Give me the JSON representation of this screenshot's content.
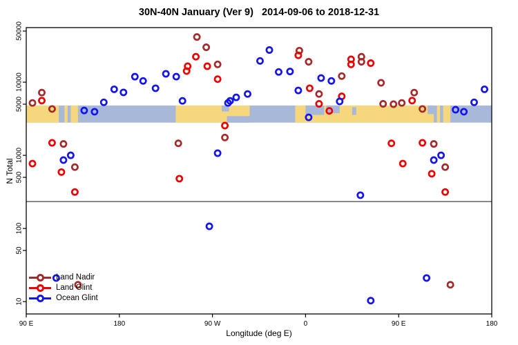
{
  "chart_data": {
    "type": "scatter",
    "title": "30N-40N January (Ver 9)   2014-09-06 to 2018-12-31",
    "xlabel": "Longitude (deg E)",
    "ylabel": "N Total",
    "x_axis_note": "longitude axis runs eastward from 90E and wraps past 180 through 90W, 0, 90E to 180 (450 degrees total)",
    "x_axis_deg_range": [
      90,
      540
    ],
    "y_scale": "log10",
    "ylim": [
      8,
      55000
    ],
    "y_ticks": [
      10,
      50,
      100,
      500,
      1000,
      5000,
      10000,
      50000
    ],
    "x_ticks": [
      {
        "deg": 90,
        "label": "90 E"
      },
      {
        "deg": 180,
        "label": "180"
      },
      {
        "deg": 270,
        "label": "90 W"
      },
      {
        "deg": 360,
        "label": "0"
      },
      {
        "deg": 450,
        "label": "90 E"
      },
      {
        "deg": 540,
        "label": "180"
      }
    ],
    "reference_line_n": 233,
    "grid": false,
    "legend_position": "bottom-left",
    "map_band": {
      "comment": "horizontal world-map strip of the 30N-40N latitude belt drawn across the plot",
      "n_top": 4800,
      "n_bottom": 2800,
      "ocean_color": "#a8b8d8",
      "land_color": "#f6d77e",
      "land_segments_deg": [
        [
          90,
          121.5
        ],
        [
          127,
          130
        ],
        [
          133,
          140
        ],
        [
          234.5,
          306
        ],
        [
          350,
          484
        ],
        [
          487,
          490
        ],
        [
          493,
          500
        ]
      ],
      "water_patches_deg": [
        {
          "from": 279,
          "to": 286,
          "top": 0.0,
          "bottom": 0.35
        },
        {
          "from": 284,
          "to": 306,
          "top": 0.62,
          "bottom": 1.0
        },
        {
          "from": 360,
          "to": 378,
          "top": 0.0,
          "bottom": 0.55
        },
        {
          "from": 380,
          "to": 393,
          "top": 0.0,
          "bottom": 0.45
        },
        {
          "from": 405,
          "to": 409,
          "top": 0.1,
          "bottom": 0.55
        },
        {
          "from": 478,
          "to": 484,
          "top": 0.0,
          "bottom": 0.5
        }
      ]
    },
    "series": [
      {
        "name": "Land Nadir",
        "color": "#a52a2a",
        "marker": "open-circle",
        "points": [
          [
            96,
            5200
          ],
          [
            105,
            7200
          ],
          [
            115,
            4300
          ],
          [
            126,
            1430
          ],
          [
            137,
            690
          ],
          [
            140,
            17
          ],
          [
            237,
            1460
          ],
          [
            255,
            41500
          ],
          [
            264,
            30000
          ],
          [
            275,
            17500
          ],
          [
            282,
            1750
          ],
          [
            354,
            27000
          ],
          [
            363,
            19000
          ],
          [
            373,
            6900
          ],
          [
            395,
            12100
          ],
          [
            414,
            22300
          ],
          [
            414,
            19000
          ],
          [
            433,
            9800
          ],
          [
            435,
            5050
          ],
          [
            445,
            5000
          ],
          [
            453,
            5200
          ],
          [
            465,
            7200
          ],
          [
            473,
            4300
          ],
          [
            484,
            1430
          ],
          [
            495,
            690
          ],
          [
            500,
            17
          ]
        ]
      },
      {
        "name": "Land Glint",
        "color": "#ee0000",
        "marker": "open-circle",
        "points": [
          [
            96,
            770
          ],
          [
            105,
            5600
          ],
          [
            115,
            1480
          ],
          [
            124,
            590
          ],
          [
            137,
            315
          ],
          [
            238,
            480
          ],
          [
            245,
            14200
          ],
          [
            246,
            16500
          ],
          [
            254,
            22300
          ],
          [
            265,
            16500
          ],
          [
            275,
            11000
          ],
          [
            282,
            2550
          ],
          [
            353,
            23300
          ],
          [
            364,
            8250
          ],
          [
            373,
            5050
          ],
          [
            383,
            4050
          ],
          [
            395,
            6400
          ],
          [
            404,
            20500
          ],
          [
            404,
            17500
          ],
          [
            423,
            18200
          ],
          [
            443,
            1460
          ],
          [
            454,
            770
          ],
          [
            463,
            5600
          ],
          [
            473,
            1480
          ],
          [
            482,
            560
          ],
          [
            495,
            315
          ]
        ]
      },
      {
        "name": "Ocean Glint",
        "color": "#1414ee",
        "marker": "open-circle",
        "points": [
          [
            119,
            21
          ],
          [
            126,
            860
          ],
          [
            133,
            1000
          ],
          [
            146,
            4100
          ],
          [
            156,
            3950
          ],
          [
            165,
            5300
          ],
          [
            175,
            8000
          ],
          [
            184,
            7250
          ],
          [
            195,
            11900
          ],
          [
            203,
            10400
          ],
          [
            215,
            8250
          ],
          [
            225,
            13000
          ],
          [
            235,
            11900
          ],
          [
            241,
            5550
          ],
          [
            267,
            107
          ],
          [
            275,
            1070
          ],
          [
            285,
            5200
          ],
          [
            287,
            5550
          ],
          [
            293,
            6200
          ],
          [
            304,
            6900
          ],
          [
            316,
            19500
          ],
          [
            325,
            27500
          ],
          [
            334,
            13800
          ],
          [
            345,
            14000
          ],
          [
            353,
            7700
          ],
          [
            363,
            3300
          ],
          [
            375,
            11400
          ],
          [
            385,
            10400
          ],
          [
            393,
            5450
          ],
          [
            413,
            285
          ],
          [
            423,
            10.3
          ],
          [
            477,
            21
          ],
          [
            484,
            860
          ],
          [
            491,
            1000
          ],
          [
            505,
            4200
          ],
          [
            513,
            3950
          ],
          [
            523,
            5300
          ],
          [
            533,
            8000
          ]
        ]
      }
    ]
  },
  "legend": {
    "items": [
      {
        "label": "Land Nadir",
        "color": "#a52a2a"
      },
      {
        "label": "Land Glint",
        "color": "#ee0000"
      },
      {
        "label": "Ocean Glint",
        "color": "#1414ee"
      }
    ]
  }
}
